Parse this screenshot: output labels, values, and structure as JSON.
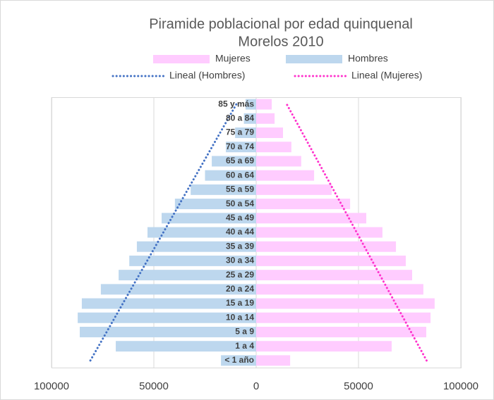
{
  "chart_data": {
    "type": "pyramid",
    "title": [
      "Piramide poblacional por edad quinquenal",
      "Morelos 2010"
    ],
    "categories": [
      "< 1 año",
      "1 a 4",
      "5 a 9",
      "10 a 14",
      "15 a 19",
      "20 a 24",
      "25 a 29",
      "30 a 34",
      "35 a 39",
      "40 a 44",
      "45 a 49",
      "50 a 54",
      "55 a 59",
      "60 a 64",
      "65 a 69",
      "70 a 74",
      "75 a 79",
      "80 a 84",
      "85 y más"
    ],
    "series": [
      {
        "name": "Mujeres",
        "color": "#ffccff",
        "values": [
          16600,
          66200,
          83100,
          85200,
          87200,
          81700,
          76200,
          73100,
          68300,
          61700,
          53800,
          45900,
          36900,
          28300,
          22000,
          17200,
          13100,
          9000,
          7600
        ]
      },
      {
        "name": "Hombres",
        "color": "#bdd7ee",
        "values": [
          -17200,
          -68600,
          -86200,
          -87200,
          -85200,
          -75900,
          -67200,
          -62000,
          -58300,
          -53100,
          -46200,
          -39700,
          -32000,
          -25000,
          -21700,
          -14800,
          -10300,
          -6000,
          -5200
        ]
      }
    ],
    "trendlines": [
      {
        "name": "Lineal (Hombres)",
        "series": 1,
        "color": "#4472c4"
      },
      {
        "name": "Lineal (Mujeres)",
        "series": 0,
        "color": "#ff33cc"
      }
    ],
    "xlim": [
      -100000,
      100000
    ],
    "xticks": [
      {
        "value": -100000,
        "label": "100000"
      },
      {
        "value": -50000,
        "label": "50000"
      },
      0,
      50000,
      100000
    ],
    "grid": true
  }
}
